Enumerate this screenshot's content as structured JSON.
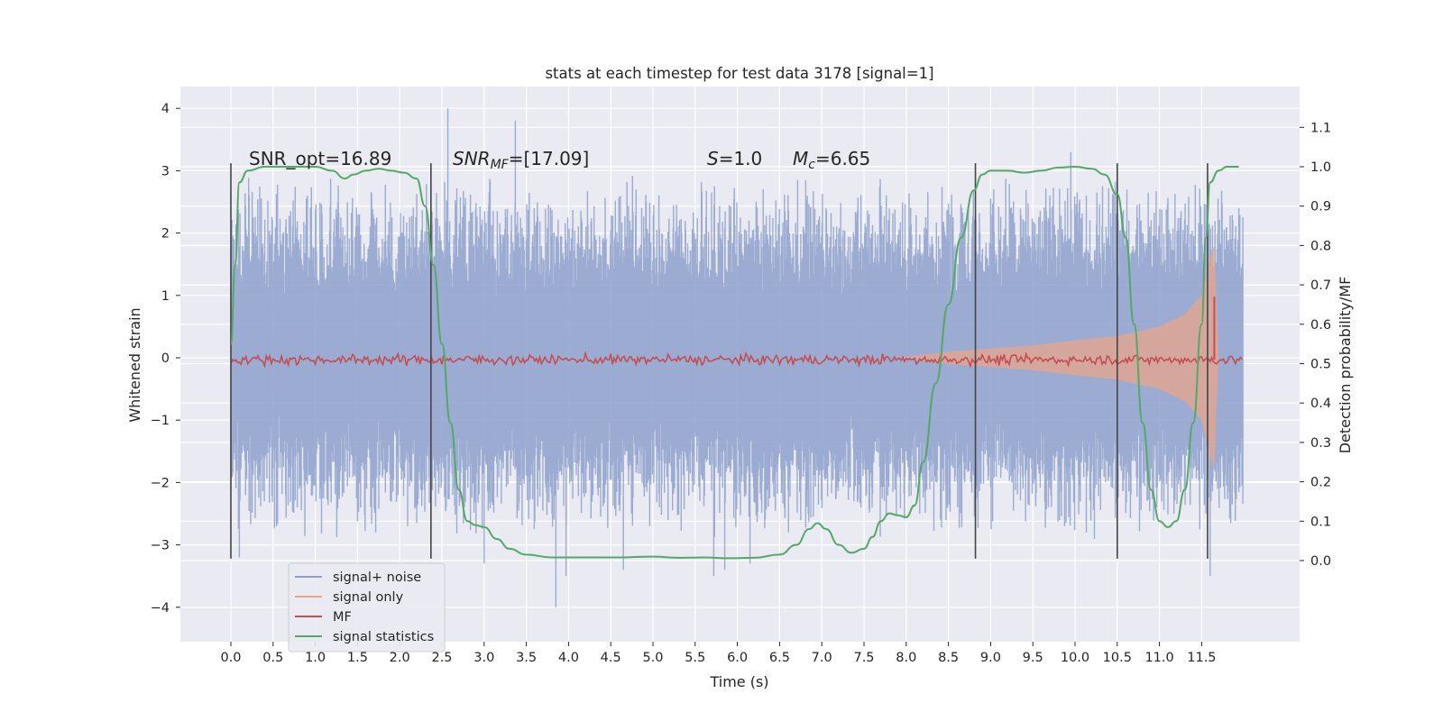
{
  "chart_data": {
    "type": "line",
    "title": "stats at each timestep for test data 3178 [signal=1]",
    "xlabel": "Time (s)",
    "ylabel": "Whitened strain",
    "y2label": "Detection probability/MF",
    "xlim": [
      -0.58,
      12.6
    ],
    "ylim": [
      -4.4,
      4.4
    ],
    "y2lim": [
      -0.2,
      1.2
    ],
    "xticks": [
      "0.0",
      "0.5",
      "1.0",
      "1.5",
      "2.0",
      "2.5",
      "3.0",
      "3.5",
      "4.0",
      "4.5",
      "5.0",
      "5.5",
      "6.0",
      "6.5",
      "7.0",
      "7.5",
      "8.0",
      "8.5",
      "9.0",
      "9.5",
      "10.0",
      "10.5",
      "11.0",
      "11.5"
    ],
    "yticks": [
      "4",
      "3",
      "2",
      "1",
      "0",
      "−1",
      "−2",
      "−3",
      "−4"
    ],
    "y2ticks": [
      "1.1",
      "1.0",
      "0.9",
      "0.8",
      "0.7",
      "0.6",
      "0.5",
      "0.4",
      "0.3",
      "0.2",
      "0.1",
      "0.0"
    ],
    "grid": true,
    "legend_position": "lower-left",
    "annotations": {
      "snr_opt": "SNR_opt=16.89",
      "snr_mf_sym": "SNR",
      "snr_mf_sub": "MF",
      "snr_mf_val": "=[17.09]",
      "s_sym": "S",
      "s_val": "=1.0",
      "mc_sym": "M",
      "mc_sub": "c",
      "mc_val": "=6.65"
    },
    "detection_markers_s": [
      0.0,
      2.37,
      8.82,
      10.5,
      11.57
    ],
    "series": [
      {
        "name": "signal+ noise",
        "color": "#8da0cb",
        "axis": "left",
        "description_points": "dense noise, envelope approx ±2.5",
        "x_range": [
          0.0,
          11.99
        ],
        "typical_amplitude": 2.3
      },
      {
        "name": "signal only",
        "color": "#e8a58a",
        "axis": "left",
        "x": [
          7.9,
          8.5,
          9.0,
          9.5,
          10.0,
          10.5,
          11.0,
          11.3,
          11.5,
          11.6,
          11.65,
          11.7
        ],
        "y": [
          0.0,
          0.1,
          0.15,
          0.2,
          0.28,
          0.35,
          0.5,
          0.7,
          1.0,
          1.6,
          1.8,
          0.0
        ]
      },
      {
        "name": "MF",
        "color": "#c44e52",
        "axis": "right",
        "baseline": 0.51,
        "spike": {
          "x": 11.65,
          "y": 0.67
        }
      },
      {
        "name": "signal statistics",
        "color": "#55a868",
        "axis": "right",
        "x": [
          0.0,
          0.05,
          0.1,
          0.2,
          0.4,
          0.7,
          1.0,
          1.2,
          1.35,
          1.45,
          1.6,
          1.75,
          1.9,
          2.05,
          2.2,
          2.3,
          2.4,
          2.5,
          2.6,
          2.7,
          2.8,
          2.9,
          3.0,
          3.15,
          3.3,
          3.5,
          3.8,
          4.2,
          4.6,
          5.0,
          5.3,
          5.6,
          5.9,
          6.2,
          6.5,
          6.7,
          6.85,
          6.95,
          7.05,
          7.2,
          7.35,
          7.5,
          7.6,
          7.7,
          7.8,
          7.9,
          8.0,
          8.1,
          8.2,
          8.35,
          8.5,
          8.65,
          8.8,
          8.9,
          9.0,
          9.2,
          9.4,
          9.6,
          9.8,
          10.0,
          10.2,
          10.35,
          10.5,
          10.6,
          10.7,
          10.8,
          10.9,
          11.0,
          11.1,
          11.2,
          11.3,
          11.4,
          11.5,
          11.55,
          11.6,
          11.7,
          11.8,
          11.94
        ],
        "y": [
          0.55,
          0.75,
          0.96,
          0.99,
          1.0,
          1.0,
          1.0,
          0.99,
          0.97,
          0.98,
          0.99,
          0.995,
          0.99,
          0.985,
          0.97,
          0.9,
          0.75,
          0.55,
          0.35,
          0.18,
          0.1,
          0.09,
          0.085,
          0.055,
          0.03,
          0.015,
          0.008,
          0.008,
          0.008,
          0.01,
          0.007,
          0.008,
          0.006,
          0.007,
          0.015,
          0.04,
          0.08,
          0.095,
          0.08,
          0.04,
          0.02,
          0.03,
          0.06,
          0.1,
          0.12,
          0.115,
          0.11,
          0.14,
          0.25,
          0.45,
          0.65,
          0.82,
          0.94,
          0.98,
          0.99,
          0.99,
          0.985,
          0.99,
          0.998,
          1.0,
          0.995,
          0.98,
          0.93,
          0.82,
          0.6,
          0.35,
          0.18,
          0.1,
          0.085,
          0.1,
          0.18,
          0.35,
          0.6,
          0.82,
          0.96,
          0.99,
          1.0,
          1.0
        ]
      }
    ]
  }
}
